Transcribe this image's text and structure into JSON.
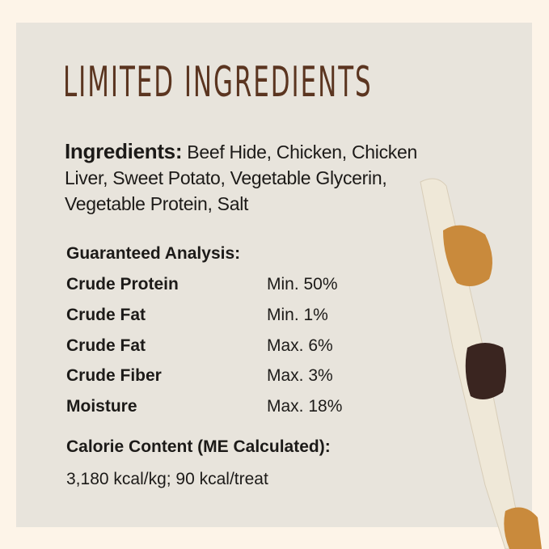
{
  "title": "LIMITED INGREDIENTS",
  "ingredients": {
    "label": "Ingredients:",
    "text": " Beef Hide, Chicken, Chicken Liver, Sweet Potato, Vegetable Glycerin, Vegetable Protein, Salt"
  },
  "analysis": {
    "title": "Guaranteed Analysis:",
    "rows": [
      {
        "name": "Crude Protein",
        "value": "Min. 50%"
      },
      {
        "name": "Crude Fat",
        "value": "Min. 1%"
      },
      {
        "name": "Crude Fat",
        "value": "Max. 6%"
      },
      {
        "name": "Crude Fiber",
        "value": "Max. 3%"
      },
      {
        "name": "Moisture",
        "value": "Max. 18%"
      }
    ]
  },
  "calorie": {
    "title": "Calorie Content (ME Calculated):",
    "value": "3,180 kcal/kg; 90 kcal/treat"
  },
  "colors": {
    "title": "#5b3520",
    "panel": "#e8e4dc",
    "border": "#fdf4e8"
  }
}
